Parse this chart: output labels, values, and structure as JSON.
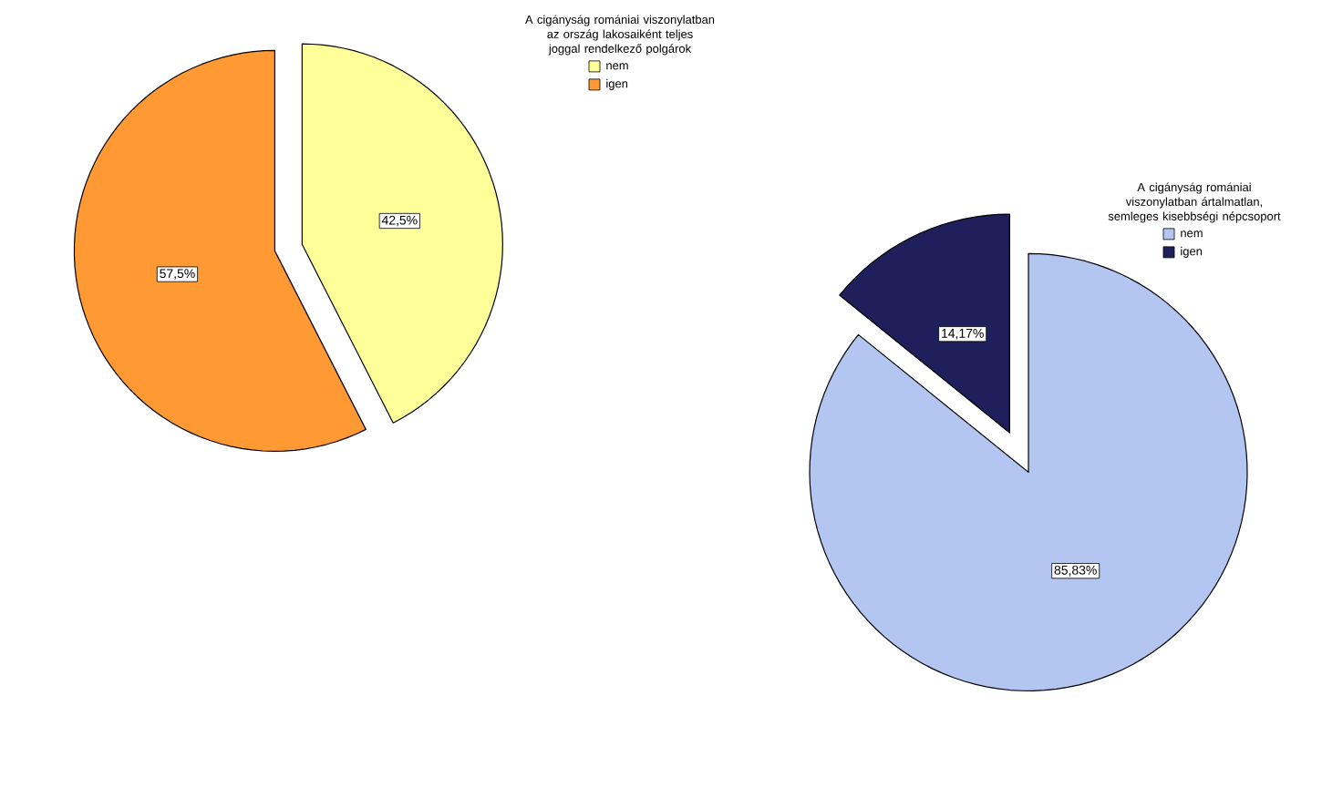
{
  "chart_data": [
    {
      "type": "pie",
      "legend_title": "A cigányság romániai viszonylatban az ország lakosaiként teljes joggal rendelkező polgárok",
      "categories": [
        "nem",
        "igen"
      ],
      "values": [
        42.5,
        57.5
      ],
      "value_labels": [
        "42,5%",
        "57,5%"
      ],
      "colors": [
        "#ffff99",
        "#ff9933"
      ],
      "legend": "top right"
    },
    {
      "type": "pie",
      "legend_title": "A cigányság romániai viszonylatban ártalmatlan, semleges kisebbségi népcsoport",
      "categories": [
        "nem",
        "igen"
      ],
      "values": [
        85.83,
        14.17
      ],
      "value_labels": [
        "85,83%",
        "14,17%"
      ],
      "colors": [
        "#b3c6f2",
        "#1f1f5c"
      ],
      "legend": "right"
    }
  ]
}
